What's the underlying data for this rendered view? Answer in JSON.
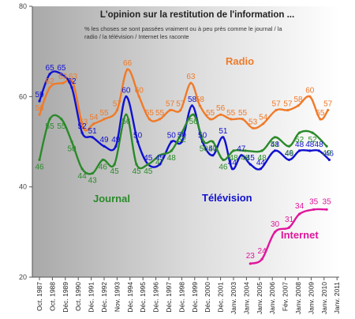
{
  "chart_data": {
    "type": "line",
    "title": "L'opinion sur la restitution de l'information ...",
    "subtitle": [
      "% les choses se sont passées vraiment ou à peu près comme le journal / la",
      "radio / la télévision / Internet les raconte"
    ],
    "ylim": [
      20,
      80
    ],
    "yticks": [
      "20",
      "40",
      "60",
      "80"
    ],
    "x_labels": [
      "Oct. 1987",
      "Oct. 1988",
      "Déc. 1989",
      "Oct. 1990",
      "Déc. 1991",
      "Déc. 1992",
      "Nov. 1993",
      "Déc. 1994",
      "Déc. 1995",
      "Déc. 1996",
      "Déc. 1997",
      "Déc. 1998",
      "Déc. 1999",
      "Déc. 2000",
      "Déc. 2001",
      "Janv. 2003",
      "Janv. 2004",
      "Janv. 2005",
      "Janv. 2006",
      "Fév. 2007",
      "Janv. 2008",
      "Janv. 2009",
      "Janv. 2010",
      "Janv. 2011"
    ],
    "colors": {
      "Radio": "#f07a28",
      "Télévision": "#1010d0",
      "Journal": "#2a8a2a",
      "Internet": "#e0169c",
      "background_left": "#a9a9a9",
      "background_right": "#ffffff"
    },
    "series": [
      {
        "name": "Radio",
        "points": [
          [
            0,
            56
          ],
          [
            0.8,
            62
          ],
          [
            1.8,
            63
          ],
          [
            2.6,
            63
          ],
          [
            3.4,
            53
          ],
          [
            4.2,
            54
          ],
          [
            5,
            55
          ],
          [
            6,
            57
          ],
          [
            6.8,
            66
          ],
          [
            7.7,
            60
          ],
          [
            8.5,
            55
          ],
          [
            9.3,
            55
          ],
          [
            10.1,
            57
          ],
          [
            10.9,
            57
          ],
          [
            11.7,
            63
          ],
          [
            12.4,
            58
          ],
          [
            13.2,
            55
          ],
          [
            14,
            56
          ],
          [
            14.8,
            55
          ],
          [
            15.7,
            55
          ],
          [
            16.5,
            53
          ],
          [
            17.3,
            54
          ],
          [
            18.3,
            57
          ],
          [
            19.2,
            57
          ],
          [
            20,
            58
          ],
          [
            20.9,
            60
          ],
          [
            21.7,
            55
          ],
          [
            22.3,
            57
          ]
        ]
      },
      {
        "name": "Télévision",
        "points": [
          [
            0,
            59
          ],
          [
            0.8,
            65
          ],
          [
            1.7,
            65
          ],
          [
            2.5,
            62
          ],
          [
            3.3,
            52
          ],
          [
            4.1,
            51
          ],
          [
            5,
            49
          ],
          [
            5.9,
            49
          ],
          [
            6.7,
            60
          ],
          [
            7.6,
            50
          ],
          [
            8.4,
            45
          ],
          [
            9.3,
            45
          ],
          [
            10.2,
            50
          ],
          [
            11,
            50
          ],
          [
            11.8,
            58
          ],
          [
            12.6,
            50
          ],
          [
            13.4,
            47
          ],
          [
            14.2,
            51
          ],
          [
            14.9,
            44
          ],
          [
            15.6,
            47
          ],
          [
            16.3,
            45
          ],
          [
            17.1,
            44
          ],
          [
            18.2,
            48
          ],
          [
            19.3,
            46
          ],
          [
            20.1,
            48
          ],
          [
            20.9,
            48
          ],
          [
            21.6,
            48
          ],
          [
            22.4,
            46
          ]
        ]
      },
      {
        "name": "Journal",
        "points": [
          [
            0,
            46
          ],
          [
            0.8,
            55
          ],
          [
            1.7,
            55
          ],
          [
            2.5,
            50
          ],
          [
            3.3,
            44
          ],
          [
            4.1,
            43
          ],
          [
            4.9,
            46
          ],
          [
            5.8,
            45
          ],
          [
            6.7,
            56
          ],
          [
            7.5,
            45
          ],
          [
            8.4,
            45
          ],
          [
            9.3,
            47
          ],
          [
            10.2,
            48
          ],
          [
            11,
            52
          ],
          [
            11.9,
            56
          ],
          [
            12.7,
            50
          ],
          [
            13.4,
            50
          ],
          [
            14.2,
            46
          ],
          [
            15,
            48
          ],
          [
            15.9,
            48
          ],
          [
            17.2,
            48
          ],
          [
            18.2,
            51
          ],
          [
            19.3,
            49
          ],
          [
            20.1,
            52
          ],
          [
            21.1,
            52
          ],
          [
            22.2,
            49
          ]
        ]
      },
      {
        "name": "Internet",
        "points": [
          [
            16.3,
            23
          ],
          [
            17.2,
            24
          ],
          [
            18.2,
            30
          ],
          [
            19.3,
            31
          ],
          [
            20.1,
            34
          ],
          [
            21.2,
            35
          ],
          [
            22.2,
            35
          ]
        ]
      }
    ],
    "visible_data_labels": {
      "Radio": [
        "56",
        "62",
        "63",
        "63",
        "53",
        "54",
        "55",
        "57",
        "66",
        "60",
        "55",
        "55",
        "57",
        "57",
        "63",
        "58",
        "55",
        "56",
        "55",
        "55",
        "53",
        "54",
        "57",
        "57",
        "58",
        "60",
        "55",
        "57"
      ],
      "Télévision": [
        "59",
        "65",
        "65",
        "62",
        "52",
        "51",
        "49",
        "49",
        "60",
        "50",
        "45",
        "45",
        "50",
        "50",
        "58",
        "50",
        "47",
        "51",
        "44",
        "47",
        "45",
        "44",
        "48",
        "46",
        "48",
        "48",
        "48",
        "46"
      ],
      "Journal": [
        "46",
        "55",
        "55",
        "50",
        "44",
        "43",
        "46",
        "45",
        "56",
        "45",
        "45",
        "47",
        "48",
        "52",
        "56",
        "50",
        "50",
        "46",
        "48",
        "48",
        "48",
        "51",
        "49",
        "52",
        "52",
        "49"
      ],
      "Internet": [
        "23",
        "24",
        "30",
        "31",
        "34",
        "35",
        "35"
      ]
    }
  }
}
